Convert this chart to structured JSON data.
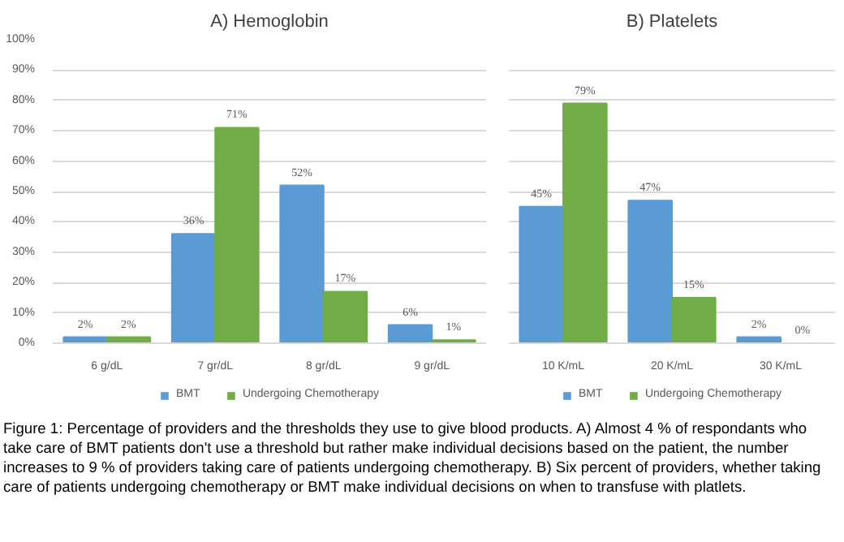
{
  "chart_data": [
    {
      "type": "bar",
      "title": "A) Hemoglobin",
      "categories": [
        "6 g/dL",
        "7 gr/dL",
        "8 gr/dL",
        "9 gr/dL"
      ],
      "series": [
        {
          "name": "BMT",
          "color": "#5b9bd5",
          "values": [
            2,
            36,
            52,
            6
          ],
          "value_labels": [
            "2%",
            "36%",
            "52%",
            "6%"
          ]
        },
        {
          "name": "Undergoing Chemotherapy",
          "color": "#70ad47",
          "values": [
            2,
            71,
            17,
            1
          ],
          "value_labels": [
            "2%",
            "71%",
            "17%",
            "1%"
          ]
        }
      ],
      "ylim": [
        0,
        100
      ],
      "yticks": [
        {
          "value": 0,
          "label": "0%"
        },
        {
          "value": 10,
          "label": "10%"
        },
        {
          "value": 20,
          "label": "20%"
        },
        {
          "value": 30,
          "label": "30%"
        },
        {
          "value": 40,
          "label": "40%"
        },
        {
          "value": 50,
          "label": "50%"
        },
        {
          "value": 60,
          "label": "60%"
        },
        {
          "value": 70,
          "label": "70%"
        },
        {
          "value": 80,
          "label": "80%"
        },
        {
          "value": 90,
          "label": "90%"
        },
        {
          "value": 100,
          "label": "100%"
        }
      ],
      "grid": "y",
      "legend": "bottom",
      "annotations": [
        "Figure 1: Percentage of providers and the thresholds they use to give blood products. A) Almost 4 % of respondants who take care of BMT patients don't use a threshold but rather make individual decisions based on the patient, the number increases to 9 % of providers taking care of patients undergoing chemotherapy. B) Six percent of providers, whether taking care of patients undergoing chemotherapy or BMT make individual decisions on when to transfuse with platlets."
      ]
    },
    {
      "type": "bar",
      "title": "B) Platelets",
      "categories": [
        "10 K/mL",
        "20 K/mL",
        "30 K/mL"
      ],
      "series": [
        {
          "name": "BMT",
          "color": "#5b9bd5",
          "values": [
            45,
            47,
            2
          ],
          "value_labels": [
            "45%",
            "47%",
            "2%"
          ]
        },
        {
          "name": "Undergoing Chemotherapy",
          "color": "#70ad47",
          "values": [
            79,
            15,
            0
          ],
          "value_labels": [
            "79%",
            "15%",
            "0%"
          ]
        }
      ],
      "ylim": [
        0,
        100
      ],
      "yticks": [
        0,
        10,
        20,
        30,
        40,
        50,
        60,
        70,
        80,
        90,
        100
      ],
      "grid": "y",
      "legend": "bottom",
      "tick_labels": "x"
    }
  ]
}
